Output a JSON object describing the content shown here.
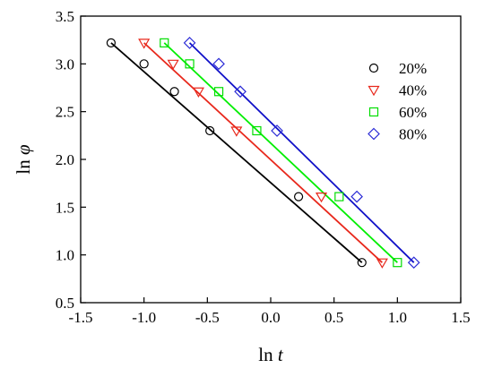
{
  "chart_data": {
    "type": "scatter",
    "xlabel_main": "ln",
    "xlabel_var": "t",
    "ylabel_main": "ln",
    "ylabel_var": "φ",
    "xlim": [
      -1.5,
      1.5
    ],
    "ylim": [
      0.5,
      3.5
    ],
    "xticks": [
      "-1.5",
      "-1.0",
      "-0.5",
      "0.0",
      "0.5",
      "1.0",
      "1.5"
    ],
    "yticks": [
      "0.5",
      "1.0",
      "1.5",
      "2.0",
      "2.5",
      "3.0",
      "3.5"
    ],
    "grid": false,
    "legend_position": "top-right",
    "series": [
      {
        "name": "20%",
        "marker": "circle",
        "color": "#000000",
        "line_color": "#000000",
        "points": [
          [
            -1.26,
            3.22
          ],
          [
            -1.0,
            3.0
          ],
          [
            -0.76,
            2.71
          ],
          [
            -0.48,
            2.3
          ],
          [
            0.22,
            1.61
          ],
          [
            0.72,
            0.92
          ]
        ],
        "fit": [
          [
            -1.26,
            3.22
          ],
          [
            0.72,
            0.92
          ]
        ]
      },
      {
        "name": "40%",
        "marker": "triangle-down",
        "color": "#e8281c",
        "line_color": "#e8281c",
        "points": [
          [
            -1.0,
            3.22
          ],
          [
            -0.77,
            3.0
          ],
          [
            -0.57,
            2.71
          ],
          [
            -0.27,
            2.3
          ],
          [
            0.4,
            1.61
          ],
          [
            0.88,
            0.92
          ]
        ],
        "fit": [
          [
            -1.0,
            3.22
          ],
          [
            0.88,
            0.92
          ]
        ]
      },
      {
        "name": "60%",
        "marker": "square",
        "color": "#00dd00",
        "line_color": "#00ee00",
        "points": [
          [
            -0.84,
            3.22
          ],
          [
            -0.64,
            3.0
          ],
          [
            -0.41,
            2.71
          ],
          [
            -0.11,
            2.3
          ],
          [
            0.54,
            1.61
          ],
          [
            1.0,
            0.92
          ]
        ],
        "fit": [
          [
            -0.84,
            3.22
          ],
          [
            1.0,
            0.92
          ]
        ]
      },
      {
        "name": "80%",
        "marker": "diamond",
        "color": "#2b2bd6",
        "line_color": "#1010c8",
        "points": [
          [
            -0.64,
            3.22
          ],
          [
            -0.41,
            3.0
          ],
          [
            -0.24,
            2.71
          ],
          [
            0.05,
            2.3
          ],
          [
            0.68,
            1.61
          ],
          [
            1.13,
            0.92
          ]
        ],
        "fit": [
          [
            -0.64,
            3.22
          ],
          [
            1.13,
            0.92
          ]
        ]
      }
    ]
  }
}
